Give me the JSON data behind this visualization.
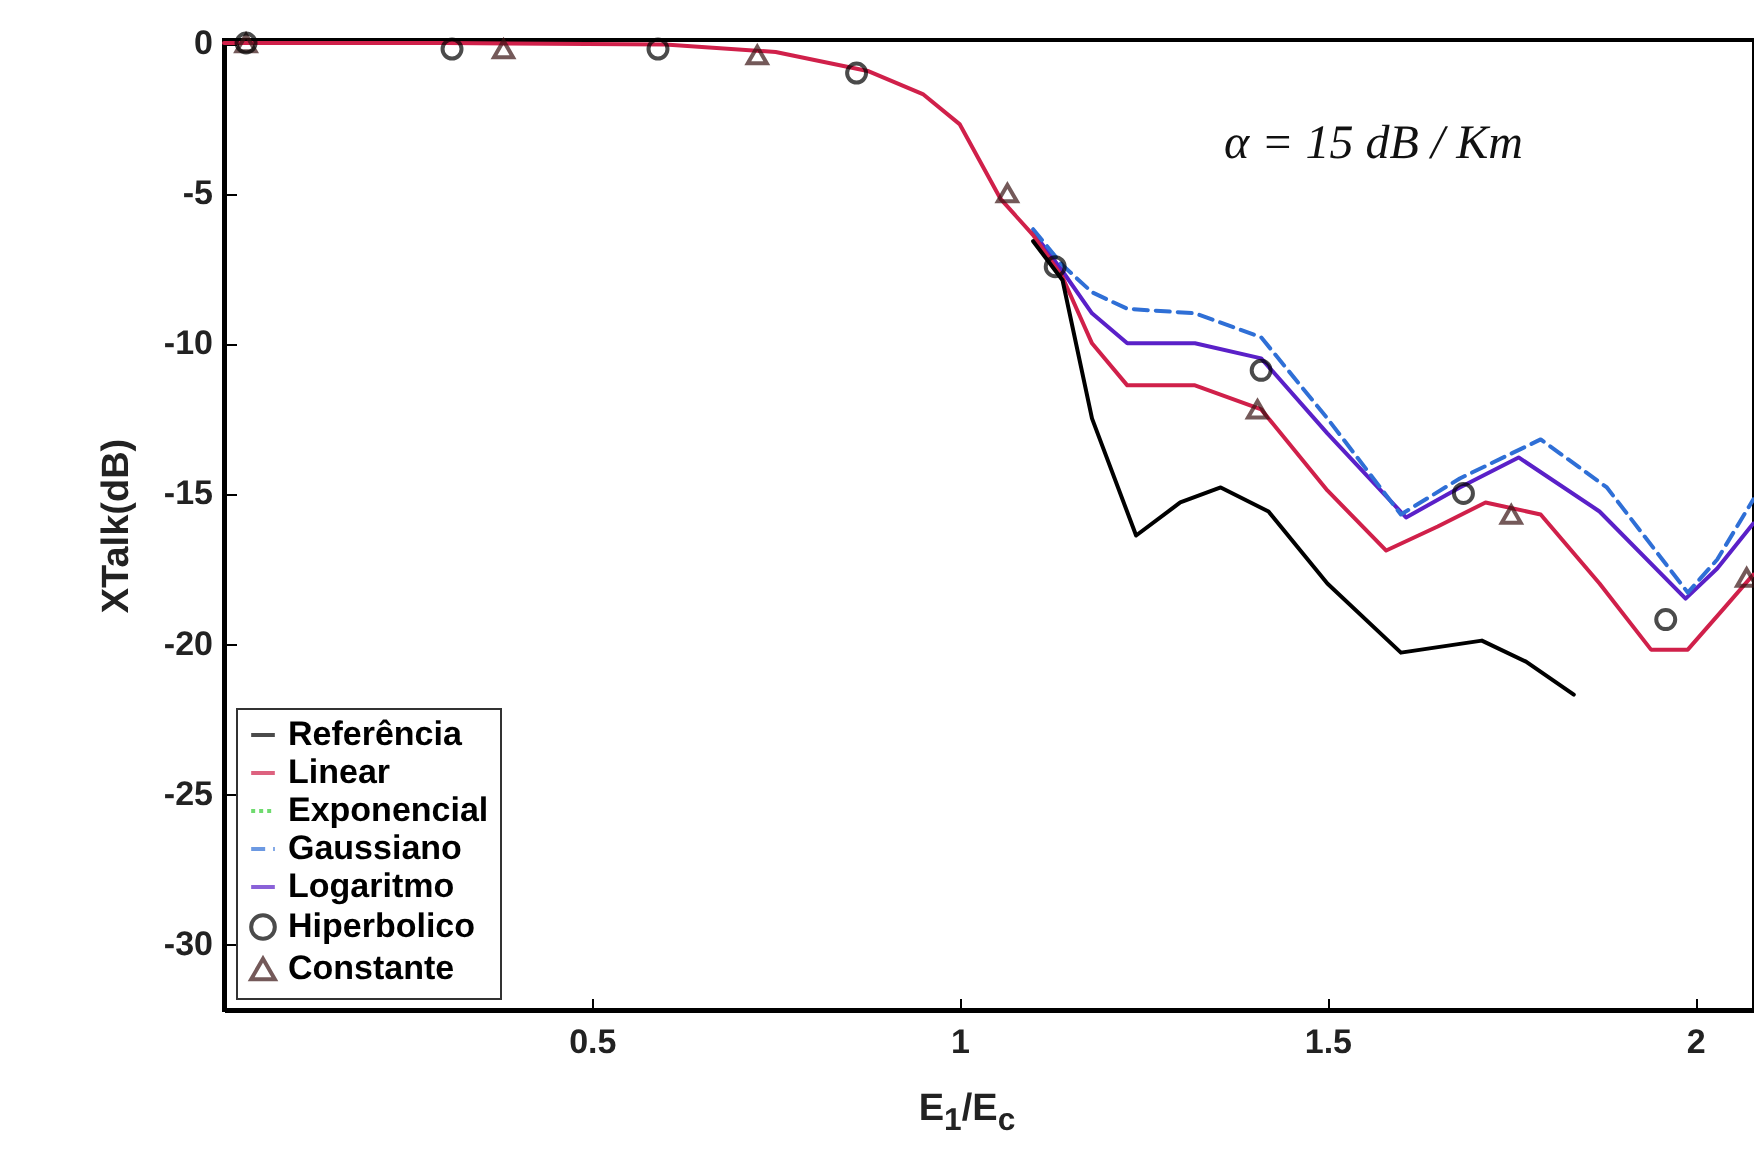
{
  "chart_data": {
    "type": "line",
    "xlabel": "E$_{1}$/E$_{c}$",
    "ylabel": "XTalk(dB)",
    "xlim": [
      0,
      2.08
    ],
    "ylim": [
      -32.2,
      0.1
    ],
    "xticks": [
      0.5,
      1,
      1.5,
      2
    ],
    "yticks": [
      0,
      -5,
      -10,
      -15,
      -20,
      -25,
      -30
    ],
    "annotations": [
      "α = 15 dB / Km"
    ],
    "legend": "bottom left",
    "grid": false,
    "series": [
      {
        "name": "Referência",
        "color": "#000000",
        "line_style": "solid",
        "x": [
          1.1,
          1.14,
          1.18,
          1.24,
          1.3,
          1.355,
          1.42,
          1.5,
          1.6,
          1.71,
          1.77,
          1.835
        ],
        "values": [
          -6.6,
          -7.9,
          -12.5,
          -16.4,
          -15.3,
          -14.8,
          -15.6,
          -18.0,
          -20.3,
          -19.9,
          -20.6,
          -21.7
        ]
      },
      {
        "name": "Linear",
        "color": "#d0204a",
        "line_style": "solid",
        "x": [
          0.0,
          0.3,
          0.6,
          0.75,
          0.875,
          0.95,
          1.0,
          1.056,
          1.1,
          1.14,
          1.18,
          1.228,
          1.32,
          1.41,
          1.5,
          1.58,
          1.65,
          1.715,
          1.79,
          1.87,
          1.94,
          1.99,
          2.04,
          2.079
        ],
        "values": [
          0,
          0,
          -0.05,
          -0.3,
          -0.93,
          -1.7,
          -2.7,
          -5.2,
          -6.4,
          -7.8,
          -10.0,
          -11.4,
          -11.4,
          -12.2,
          -14.9,
          -16.9,
          -16.1,
          -15.3,
          -15.7,
          -18.0,
          -20.2,
          -20.2,
          -18.8,
          -17.7
        ]
      },
      {
        "name": "Exponencial",
        "color": "#33cc33",
        "line_style": "dotted"
      },
      {
        "name": "Gaussiano",
        "color": "#2f6fd6",
        "line_style": "dashed",
        "x": [
          1.1,
          1.14,
          1.18,
          1.228,
          1.32,
          1.41,
          1.5,
          1.6,
          1.68,
          1.79,
          1.88,
          1.99,
          2.03,
          2.079
        ],
        "values": [
          -6.2,
          -7.4,
          -8.3,
          -8.85,
          -9.0,
          -9.8,
          -12.5,
          -15.7,
          -14.5,
          -13.2,
          -14.8,
          -18.3,
          -17.2,
          -15.2
        ]
      },
      {
        "name": "Logaritmo",
        "color": "#5a20c8",
        "line_style": "solid",
        "x": [
          1.1,
          1.14,
          1.18,
          1.228,
          1.32,
          1.41,
          1.5,
          1.607,
          1.68,
          1.76,
          1.87,
          1.987,
          2.03,
          2.079
        ],
        "values": [
          -6.3,
          -7.6,
          -9.0,
          -10.0,
          -10.0,
          -10.5,
          -13.0,
          -15.8,
          -14.8,
          -13.8,
          -15.6,
          -18.5,
          -17.5,
          -16.0
        ]
      },
      {
        "name": "Hiperbolico",
        "color": "#000000",
        "type": "scatter",
        "marker": "circle",
        "x": [
          0.03,
          0.31,
          0.59,
          0.86,
          1.13,
          1.41,
          1.685,
          1.96
        ],
        "values": [
          0,
          -0.2,
          -0.2,
          -1.0,
          -7.45,
          -10.9,
          -15.0,
          -19.2
        ]
      },
      {
        "name": "Constante",
        "color": "#3a1414",
        "type": "scatter",
        "marker": "triangle",
        "x": [
          0.03,
          0.38,
          0.725,
          1.065,
          1.405,
          1.75,
          2.07
        ],
        "values": [
          0,
          -0.2,
          -0.4,
          -5.0,
          -12.2,
          -15.7,
          -17.8
        ]
      }
    ]
  }
}
